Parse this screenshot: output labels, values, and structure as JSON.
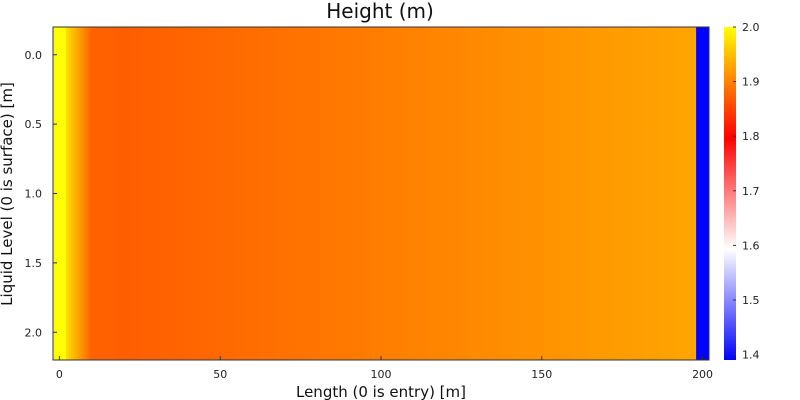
{
  "chart_data": {
    "type": "heatmap",
    "title": "Height (m)",
    "xlabel": "Length (0 is entry) [m]",
    "ylabel": "Liquid Level (0 is surface) [m]",
    "xlim": [
      -2,
      202
    ],
    "ylim": [
      2.2,
      -0.2
    ],
    "y_inverted": true,
    "xticks": [
      0,
      50,
      100,
      150,
      200
    ],
    "yticks": [
      0.0,
      0.5,
      1.0,
      1.5,
      2.0
    ],
    "ytick_labels": [
      "0.0",
      "0.5",
      "1.0",
      "1.5",
      "2.0"
    ],
    "grid": false,
    "x_columns": [
      0,
      10,
      20,
      30,
      40,
      50,
      60,
      70,
      80,
      90,
      100,
      110,
      120,
      130,
      140,
      150,
      160,
      170,
      180,
      190,
      196
    ],
    "column_values": [
      2.0,
      1.875,
      1.872,
      1.874,
      1.877,
      1.88,
      1.883,
      1.887,
      1.89,
      1.893,
      1.897,
      1.9,
      1.903,
      1.907,
      1.91,
      1.913,
      1.917,
      1.92,
      1.923,
      1.926,
      1.928
    ],
    "blocks": [
      {
        "x0": -2,
        "x1": 2,
        "value": 2.0
      },
      {
        "x0": 198,
        "x1": 202,
        "value": 1.39
      }
    ],
    "colorbar": {
      "min": 1.39,
      "max": 2.0,
      "ticks": [
        1.4,
        1.5,
        1.6,
        1.7,
        1.8,
        1.9,
        2.0
      ],
      "tick_labels": [
        "1.4",
        "1.5",
        "1.6",
        "1.7",
        "1.8",
        "1.9",
        "2.0"
      ],
      "colors": [
        "#0000ff",
        "#ffffff",
        "#ff0000",
        "#ffff00"
      ]
    }
  }
}
